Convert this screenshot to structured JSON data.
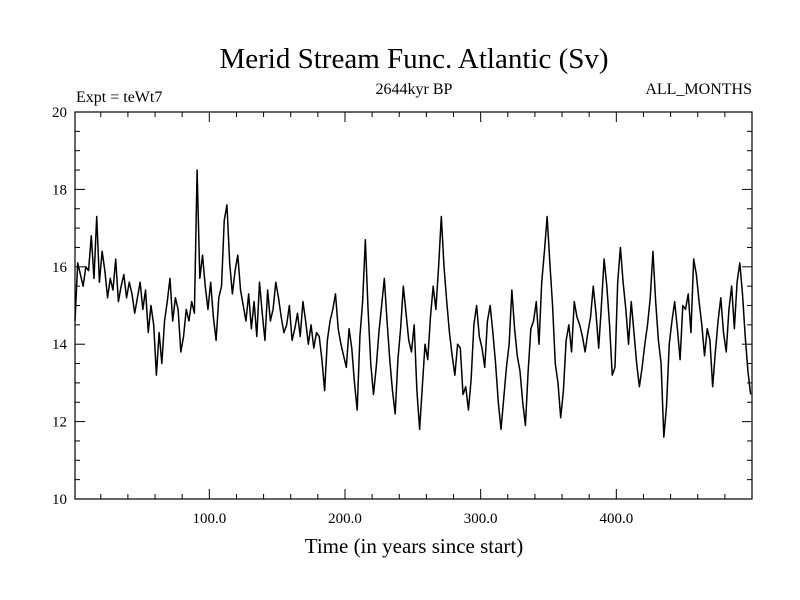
{
  "chart_data": {
    "type": "line",
    "title": "Merid Stream Func. Atlantic (Sv)",
    "subtitle_left": "Expt = teWt7",
    "subtitle_center": "2644kyr BP",
    "subtitle_right": "ALL_MONTHS",
    "xlabel": "Time (in years since start)",
    "ylabel": "",
    "xlim": [
      1,
      500
    ],
    "ylim": [
      10,
      20
    ],
    "x_ticks": [
      100,
      200,
      300,
      400
    ],
    "x_tick_labels": [
      "100.0",
      "200.0",
      "300.0",
      "400.0"
    ],
    "y_ticks": [
      10,
      12,
      14,
      16,
      18,
      20
    ],
    "y_tick_labels": [
      "10",
      "12",
      "14",
      "16",
      "18",
      "20"
    ],
    "grid": false,
    "series": [
      {
        "name": "Merid Stream Func. Atlantic",
        "x_start": 1,
        "x_step": 2,
        "values": [
          14.6,
          16.1,
          15.8,
          15.5,
          16.0,
          15.9,
          16.8,
          15.7,
          17.3,
          15.6,
          16.4,
          15.9,
          15.2,
          15.7,
          15.4,
          16.2,
          15.1,
          15.5,
          15.8,
          15.2,
          15.6,
          15.3,
          14.8,
          15.2,
          15.6,
          14.9,
          15.4,
          14.3,
          15.0,
          14.5,
          13.2,
          14.3,
          13.5,
          14.6,
          15.1,
          15.7,
          14.6,
          15.2,
          14.9,
          13.8,
          14.2,
          14.9,
          14.6,
          15.1,
          14.8,
          18.5,
          15.7,
          16.3,
          15.5,
          14.9,
          15.6,
          14.7,
          14.1,
          15.2,
          15.5,
          17.2,
          17.6,
          16.1,
          15.3,
          15.9,
          16.3,
          15.4,
          15.0,
          14.6,
          15.3,
          14.4,
          15.1,
          14.2,
          15.6,
          14.8,
          14.1,
          15.4,
          14.6,
          14.9,
          15.6,
          15.2,
          14.7,
          14.3,
          14.5,
          15.0,
          14.1,
          14.4,
          14.8,
          14.2,
          15.1,
          14.6,
          14.0,
          14.5,
          13.9,
          14.3,
          14.2,
          13.6,
          12.8,
          14.1,
          14.6,
          14.9,
          15.3,
          14.4,
          14.0,
          13.7,
          13.4,
          14.4,
          13.9,
          13.0,
          12.3,
          14.2,
          15.1,
          16.7,
          14.9,
          13.5,
          12.7,
          13.4,
          14.3,
          15.0,
          15.7,
          14.6,
          13.6,
          12.8,
          12.2,
          13.6,
          14.4,
          15.5,
          14.8,
          14.1,
          13.8,
          14.5,
          12.8,
          11.8,
          12.9,
          14.0,
          13.6,
          14.7,
          15.5,
          14.9,
          16.0,
          17.3,
          16.0,
          15.1,
          14.3,
          13.7,
          13.2,
          14.0,
          13.9,
          12.7,
          12.9,
          12.3,
          13.1,
          14.5,
          15.0,
          14.2,
          13.9,
          13.4,
          14.6,
          15.0,
          14.3,
          13.5,
          12.5,
          11.8,
          12.6,
          13.4,
          14.0,
          15.4,
          14.4,
          13.7,
          13.3,
          12.5,
          11.9,
          13.3,
          14.4,
          14.6,
          15.1,
          14.0,
          15.6,
          16.4,
          17.3,
          16.1,
          15.0,
          13.5,
          13.0,
          12.1,
          12.8,
          14.1,
          14.5,
          13.8,
          15.1,
          14.7,
          14.5,
          14.2,
          13.8,
          14.3,
          14.7,
          15.5,
          14.8,
          13.9,
          15.0,
          16.2,
          15.5,
          14.5,
          13.2,
          13.4,
          15.6,
          16.5,
          15.6,
          14.9,
          14.0,
          15.1,
          14.3,
          13.5,
          12.9,
          13.4,
          14.0,
          14.5,
          15.2,
          16.4,
          15.1,
          14.1,
          13.5,
          11.6,
          12.4,
          14.0,
          14.6,
          15.1,
          14.4,
          13.6,
          15.0,
          14.9,
          15.3,
          14.3,
          16.2,
          15.8,
          15.1,
          14.5,
          13.7,
          14.4,
          14.1,
          12.9,
          13.8,
          14.6,
          15.2,
          14.3,
          13.8,
          14.9,
          15.5,
          14.4,
          15.6,
          16.1,
          15.3,
          14.2,
          13.3,
          12.7
        ],
        "color": "#000000"
      }
    ]
  }
}
